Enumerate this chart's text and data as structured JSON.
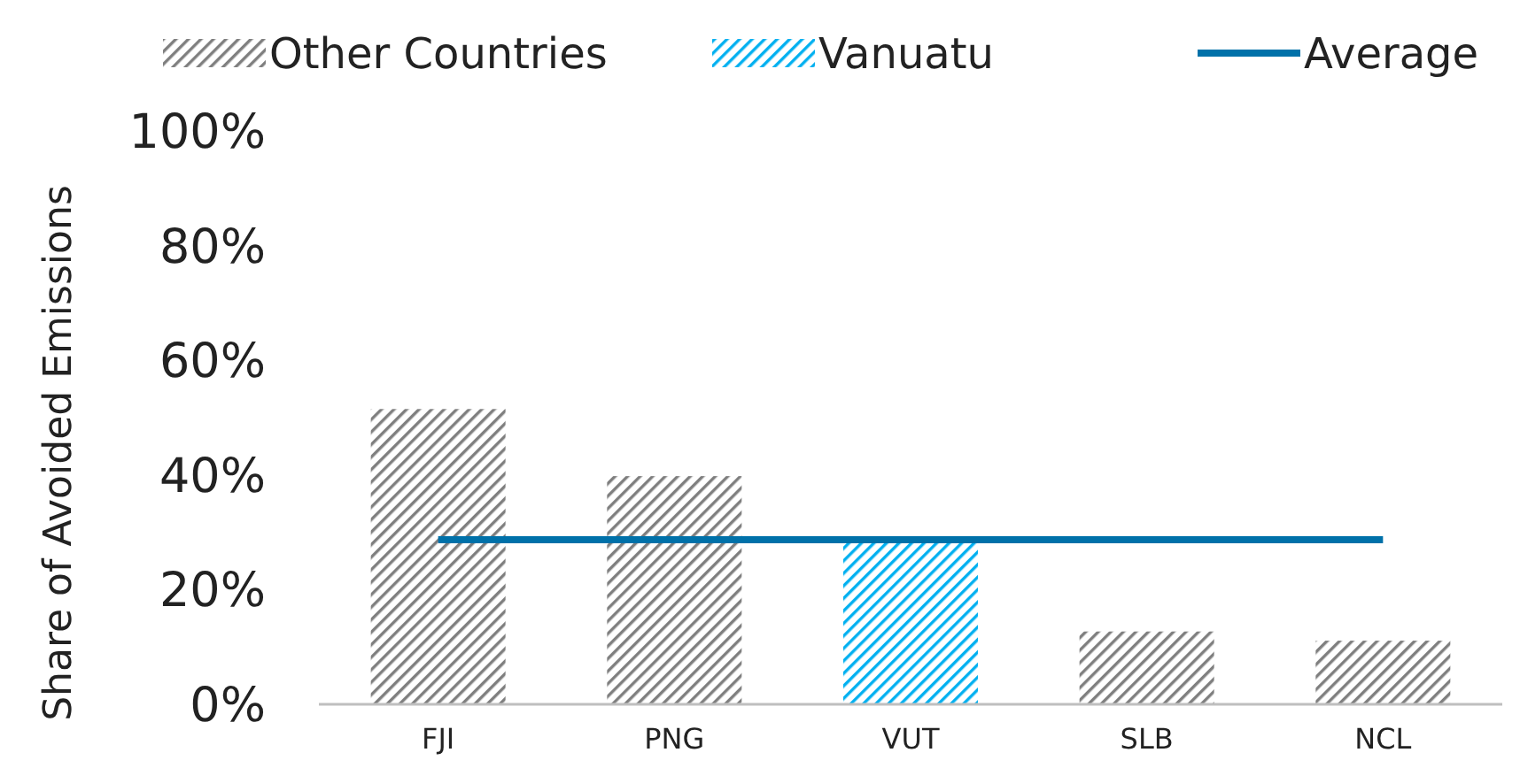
{
  "chart_data": {
    "type": "bar",
    "ylabel": "Share of Avoided Emissions",
    "categories": [
      "FJI",
      "PNG",
      "VUT",
      "SLB",
      "NCL"
    ],
    "series": [
      {
        "name": "Other Countries",
        "color": "#7f7f7f",
        "values": [
          51.5,
          39.8,
          null,
          12.7,
          11.1
        ]
      },
      {
        "name": "Vanuatu",
        "color": "#00b0f0",
        "values": [
          null,
          null,
          28.1,
          null,
          null
        ]
      },
      {
        "name": "Average",
        "type": "line",
        "color": "#0071a9",
        "values": [
          28.7,
          28.7,
          28.7,
          28.7,
          28.7
        ]
      }
    ],
    "ylim": [
      0,
      100
    ],
    "yticks": [
      {
        "value": 0,
        "label": "0%"
      },
      {
        "value": 20,
        "label": "20%"
      },
      {
        "value": 40,
        "label": "40%"
      },
      {
        "value": 60,
        "label": "60%"
      },
      {
        "value": 80,
        "label": "80%"
      },
      {
        "value": 100,
        "label": "100%"
      }
    ],
    "grid": false,
    "legend": "top"
  }
}
